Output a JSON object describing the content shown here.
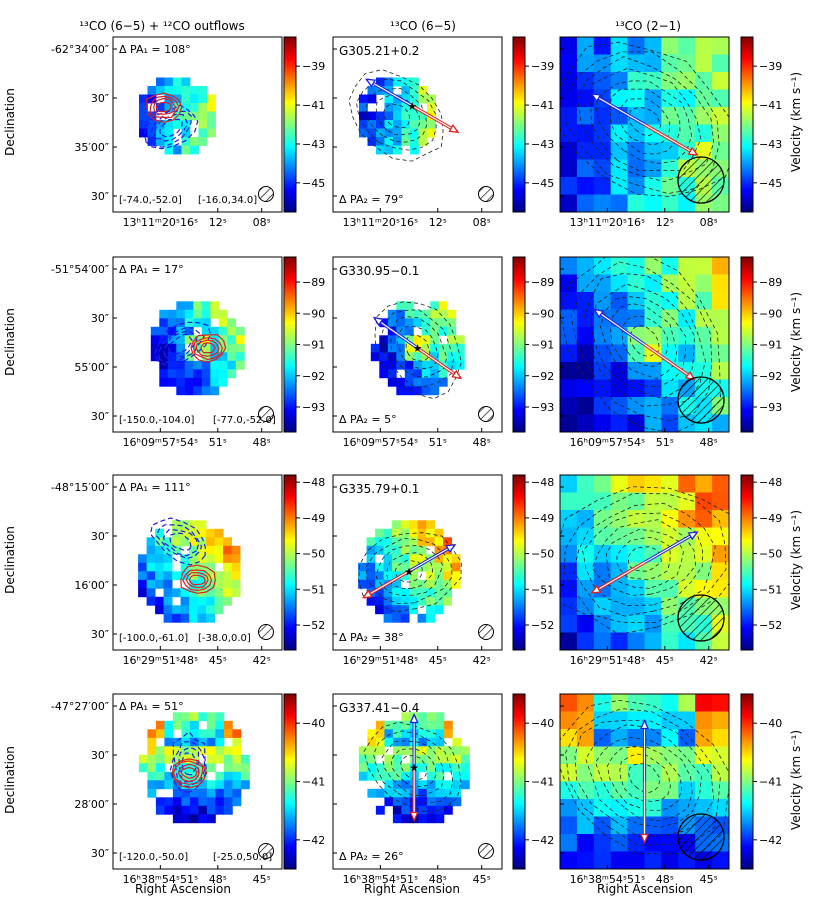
{
  "figure": {
    "column_titles": [
      "¹³CO (6−5) + ¹²CO outflows",
      "¹³CO (6−5)",
      "¹³CO (2−1)"
    ],
    "ylabel": "Declination",
    "xlabel": "Right Ascension",
    "cbar_label": "Velocity (km s⁻¹)",
    "colors": {
      "blue_lobe": "#1f1fe0",
      "red_lobe": "#e01f1f",
      "star": "#000000"
    }
  },
  "chart_data": [
    {
      "type": "heatmap",
      "source": "G305.21+0.2",
      "dpa1": "Δ PA₁ = 108°",
      "dpa2": "Δ PA₂ = 79°",
      "blue_range": "[-74.0,-52.0]",
      "red_range": "[-16.0,34.0]",
      "dec_ticks": [
        "-62°34′00″",
        "30″",
        "35′00″",
        "30″"
      ],
      "ra_ticks": [
        "13ʰ11ᵐ20ˢ16ˢ",
        "12ˢ",
        "08ˢ"
      ],
      "vlim": [
        -46.5,
        -37.5
      ],
      "cbar_ticks": [
        -39,
        -41,
        -43,
        -45
      ],
      "cbar_tick_labels": [
        "−39",
        "−41",
        "−43",
        "−45"
      ],
      "outflow_angle_deg": 150,
      "ring_angle_deg": 125
    },
    {
      "type": "heatmap",
      "source": "G330.95−0.1",
      "dpa1": "Δ PA₁ = 17°",
      "dpa2": "Δ PA₂ = 5°",
      "blue_range": "[-150.0,-104.0]",
      "red_range": "[-77.0,-52.0]",
      "dec_ticks": [
        "-51°54′00″",
        "30″",
        "55′00″",
        "30″"
      ],
      "ra_ticks": [
        "16ʰ09ᵐ57ˢ54ˢ",
        "51ˢ",
        "48ˢ"
      ],
      "vlim": [
        -93.8,
        -88.2
      ],
      "cbar_ticks": [
        -89,
        -90,
        -91,
        -92,
        -93
      ],
      "cbar_tick_labels": [
        "−89",
        "−90",
        "−91",
        "−92",
        "−93"
      ],
      "outflow_angle_deg": 145,
      "ring_angle_deg": 145
    },
    {
      "type": "heatmap",
      "source": "G335.79+0.1",
      "dpa1": "Δ PA₁ = 111°",
      "dpa2": "Δ PA₂ = 38°",
      "blue_range": "[-100.0,-61.0]",
      "red_range": "[-38.0,0.0]",
      "dec_ticks": [
        "-48°15′00″",
        "30″",
        "16′00″",
        "30″"
      ],
      "ra_ticks": [
        "16ʰ29ᵐ51ˢ48ˢ",
        "45ˢ",
        "42ˢ"
      ],
      "vlim": [
        -52.7,
        -47.8
      ],
      "cbar_ticks": [
        -48,
        -49,
        -50,
        -51,
        -52
      ],
      "cbar_tick_labels": [
        "−48",
        "−49",
        "−50",
        "−51",
        "−52"
      ],
      "outflow_angle_deg": 30,
      "ring_angle_deg": 80
    },
    {
      "type": "heatmap",
      "source": "G337.41−0.4",
      "dpa1": "Δ PA₁ = 51°",
      "dpa2": "Δ PA₂ = 26°",
      "blue_range": "[-120.0,-50.0]",
      "red_range": "[-25.0,50.0]",
      "dec_ticks": [
        "-47°27′00″",
        "30″",
        "28′00″",
        "30″"
      ],
      "ra_ticks": [
        "16ʰ38ᵐ54ˢ51ˢ",
        "48ˢ",
        "45ˢ"
      ],
      "vlim": [
        -42.5,
        -39.5
      ],
      "cbar_ticks": [
        -40,
        -41,
        -42
      ],
      "cbar_tick_labels": [
        "−40",
        "−41",
        "−42"
      ],
      "outflow_angle_deg": 90,
      "ring_angle_deg": 125
    }
  ]
}
